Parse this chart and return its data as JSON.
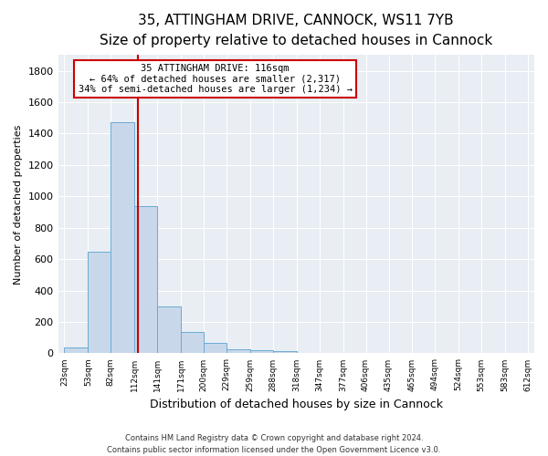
{
  "title_line1": "35, ATTINGHAM DRIVE, CANNOCK, WS11 7YB",
  "title_line2": "Size of property relative to detached houses in Cannock",
  "xlabel": "Distribution of detached houses by size in Cannock",
  "ylabel": "Number of detached properties",
  "bar_edges": [
    23,
    53,
    82,
    112,
    141,
    171,
    200,
    229,
    259,
    288,
    318,
    347,
    377,
    406,
    435,
    465,
    494,
    524,
    553,
    583,
    612
  ],
  "bar_heights": [
    40,
    650,
    1470,
    935,
    300,
    135,
    65,
    25,
    18,
    15,
    5,
    5,
    3,
    2,
    2,
    1,
    1,
    1,
    0,
    0
  ],
  "bar_color": "#c8d8ea",
  "bar_edgecolor": "#6aaad4",
  "vline_x": 116,
  "vline_color": "#cc0000",
  "ylim": [
    0,
    1900
  ],
  "yticks": [
    0,
    200,
    400,
    600,
    800,
    1000,
    1200,
    1400,
    1600,
    1800
  ],
  "annotation_title": "35 ATTINGHAM DRIVE: 116sqm",
  "annotation_line1": "← 64% of detached houses are smaller (2,317)",
  "annotation_line2": "34% of semi-detached houses are larger (1,234) →",
  "annotation_box_facecolor": "#ffffff",
  "annotation_box_edgecolor": "#cc0000",
  "footer_line1": "Contains HM Land Registry data © Crown copyright and database right 2024.",
  "footer_line2": "Contains public sector information licensed under the Open Government Licence v3.0.",
  "fig_facecolor": "#ffffff",
  "ax_facecolor": "#e8eef4",
  "grid_color": "#ffffff",
  "title1_fontsize": 11,
  "title2_fontsize": 9,
  "ylabel_fontsize": 8,
  "xlabel_fontsize": 9
}
